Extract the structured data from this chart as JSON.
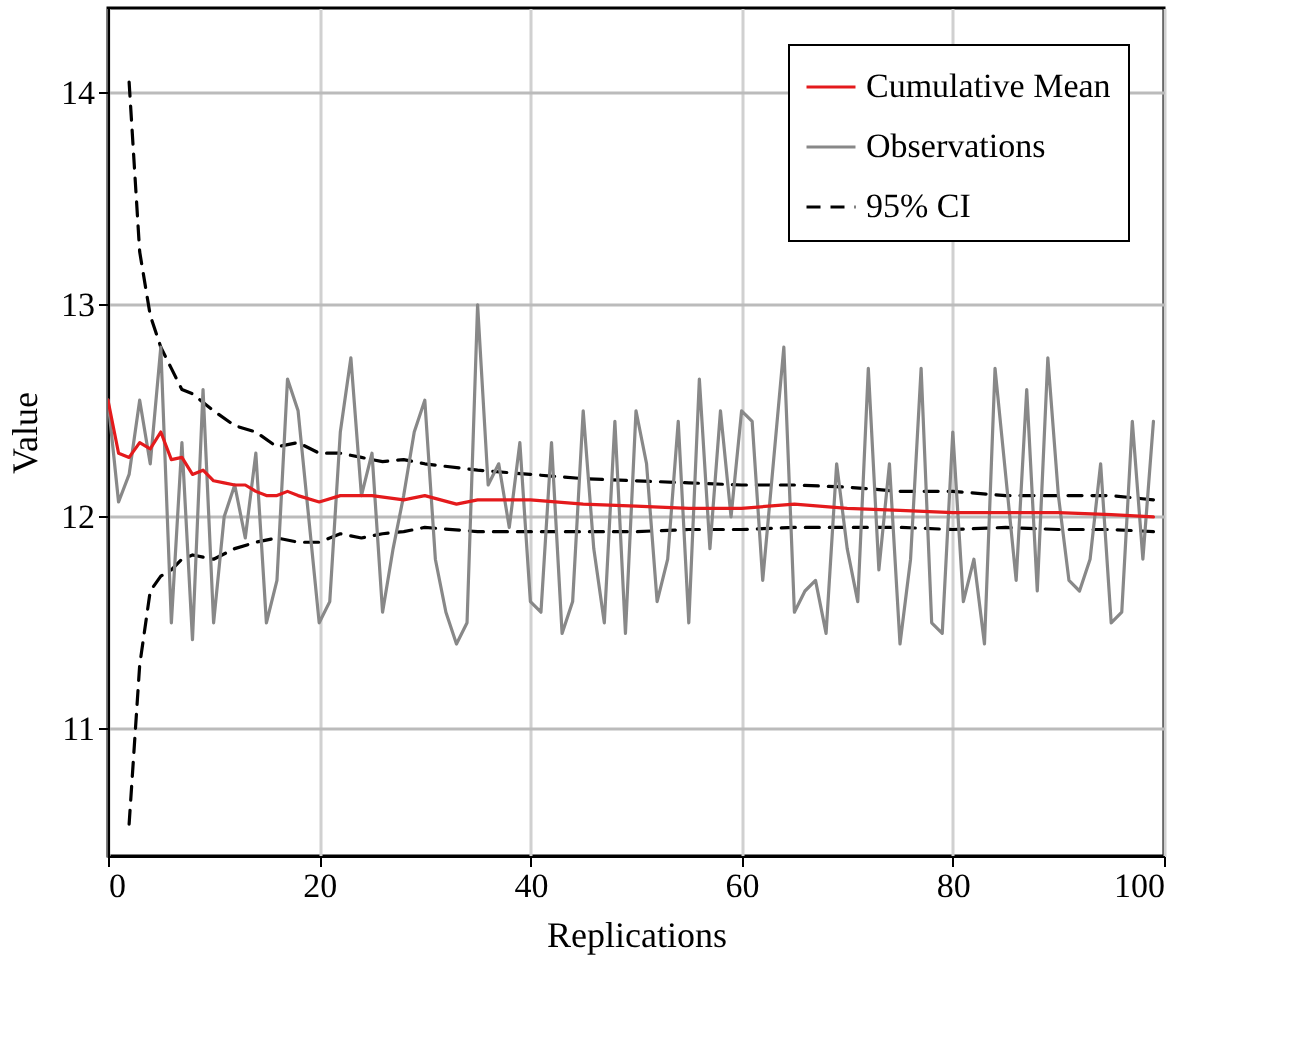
{
  "chart_data": {
    "type": "line",
    "xlabel": "Replications",
    "ylabel": "Value",
    "xlim": [
      0,
      100
    ],
    "ylim": [
      10.4,
      14.4
    ],
    "xticks": [
      0,
      20,
      40,
      60,
      80,
      100
    ],
    "yticks": [
      11,
      12,
      13,
      14
    ],
    "grid": true,
    "legend": "top right",
    "series": [
      {
        "name": "Cumulative Mean",
        "color": "#e41a1c",
        "line_style": "solid",
        "x": [
          0,
          1,
          2,
          3,
          4,
          5,
          6,
          7,
          8,
          9,
          10,
          11,
          12,
          13,
          14,
          15,
          16,
          17,
          18,
          20,
          22,
          25,
          28,
          30,
          33,
          35,
          40,
          45,
          50,
          55,
          60,
          65,
          70,
          75,
          80,
          85,
          90,
          95,
          99
        ],
        "values": [
          12.55,
          12.3,
          12.28,
          12.35,
          12.32,
          12.4,
          12.27,
          12.28,
          12.2,
          12.22,
          12.17,
          12.16,
          12.15,
          12.15,
          12.12,
          12.1,
          12.1,
          12.12,
          12.1,
          12.07,
          12.1,
          12.1,
          12.08,
          12.1,
          12.06,
          12.08,
          12.08,
          12.06,
          12.05,
          12.04,
          12.04,
          12.06,
          12.04,
          12.03,
          12.02,
          12.02,
          12.02,
          12.01,
          12.0
        ]
      },
      {
        "name": "Observations",
        "color": "#888888",
        "line_style": "solid",
        "x": [
          0,
          1,
          2,
          3,
          4,
          5,
          6,
          7,
          8,
          9,
          10,
          11,
          12,
          13,
          14,
          15,
          16,
          17,
          18,
          19,
          20,
          21,
          22,
          23,
          24,
          25,
          26,
          27,
          28,
          29,
          30,
          31,
          32,
          33,
          34,
          35,
          36,
          37,
          38,
          39,
          40,
          41,
          42,
          43,
          44,
          45,
          46,
          47,
          48,
          49,
          50,
          51,
          52,
          53,
          54,
          55,
          56,
          57,
          58,
          59,
          60,
          61,
          62,
          63,
          64,
          65,
          66,
          67,
          68,
          69,
          70,
          71,
          72,
          73,
          74,
          75,
          76,
          77,
          78,
          79,
          80,
          81,
          82,
          83,
          84,
          85,
          86,
          87,
          88,
          89,
          90,
          91,
          92,
          93,
          94,
          95,
          96,
          97,
          98,
          99
        ],
        "values": [
          12.55,
          12.07,
          12.2,
          12.55,
          12.25,
          12.8,
          11.5,
          12.35,
          11.42,
          12.6,
          11.5,
          12.0,
          12.15,
          11.9,
          12.3,
          11.5,
          11.7,
          12.65,
          12.5,
          12.0,
          11.5,
          11.6,
          12.4,
          12.75,
          12.1,
          12.3,
          11.55,
          11.85,
          12.1,
          12.4,
          12.55,
          11.8,
          11.55,
          11.4,
          11.5,
          13.0,
          12.15,
          12.25,
          11.95,
          12.35,
          11.6,
          11.55,
          12.35,
          11.45,
          11.6,
          12.5,
          11.85,
          11.5,
          12.45,
          11.45,
          12.5,
          12.25,
          11.6,
          11.8,
          12.45,
          11.5,
          12.65,
          11.85,
          12.5,
          12.0,
          12.5,
          12.45,
          11.7,
          12.25,
          12.8,
          11.55,
          11.65,
          11.7,
          11.45,
          12.25,
          11.85,
          11.6,
          12.7,
          11.75,
          12.25,
          11.4,
          11.8,
          12.7,
          11.5,
          11.45,
          12.4,
          11.6,
          11.8,
          11.4,
          12.7,
          12.2,
          11.7,
          12.6,
          11.65,
          12.75,
          12.1,
          11.7,
          11.65,
          11.8,
          12.25,
          11.5,
          11.55,
          12.45,
          11.8,
          12.45
        ]
      },
      {
        "name": "95% CI",
        "color": "#000000",
        "line_style": "dashed",
        "x": [
          2,
          3,
          4,
          5,
          6,
          7,
          8,
          10,
          12,
          14,
          16,
          18,
          20,
          22,
          24,
          26,
          28,
          30,
          35,
          40,
          45,
          50,
          55,
          60,
          65,
          70,
          75,
          80,
          85,
          90,
          95,
          99
        ],
        "values": [
          14.05,
          13.25,
          12.95,
          12.8,
          12.7,
          12.6,
          12.58,
          12.5,
          12.43,
          12.4,
          12.33,
          12.35,
          12.3,
          12.3,
          12.28,
          12.26,
          12.27,
          12.25,
          12.22,
          12.2,
          12.18,
          12.17,
          12.16,
          12.15,
          12.15,
          12.14,
          12.12,
          12.12,
          12.1,
          12.1,
          12.1,
          12.08
        ]
      },
      {
        "color": "#000000",
        "line_style": "dashed",
        "x": [
          2,
          3,
          4,
          5,
          6,
          7,
          8,
          10,
          12,
          14,
          16,
          18,
          20,
          22,
          24,
          26,
          28,
          30,
          35,
          40,
          45,
          50,
          55,
          60,
          65,
          70,
          75,
          80,
          85,
          90,
          95,
          99
        ],
        "values": [
          10.55,
          11.3,
          11.65,
          11.72,
          11.75,
          11.8,
          11.82,
          11.8,
          11.85,
          11.88,
          11.9,
          11.88,
          11.88,
          11.92,
          11.9,
          11.92,
          11.93,
          11.95,
          11.93,
          11.93,
          11.93,
          11.93,
          11.94,
          11.94,
          11.95,
          11.95,
          11.95,
          11.94,
          11.95,
          11.94,
          11.94,
          11.93
        ]
      }
    ]
  }
}
